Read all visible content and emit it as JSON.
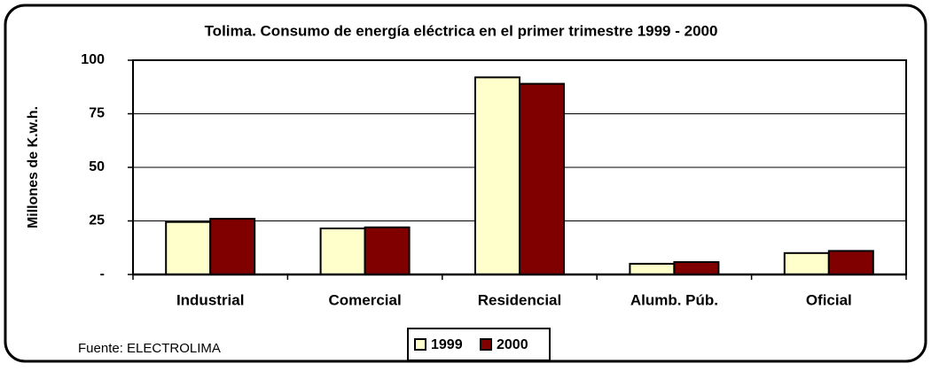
{
  "chart_data": {
    "type": "bar",
    "title": "Tolima. Consumo de energía eléctrica en el primer trimestre 1999 - 2000",
    "y_label": "Millones de K.w.h.",
    "source": "Fuente: ELECTROLIMA",
    "categories": [
      "Industrial",
      "Comercial",
      "Residencial",
      "Alumb. Púb.",
      "Oficial"
    ],
    "series": [
      {
        "name": "1999",
        "color": "#ffffcc",
        "values": [
          24.5,
          21.5,
          92,
          5,
          10
        ]
      },
      {
        "name": "2000",
        "color": "#800000",
        "values": [
          26,
          22,
          89,
          5.8,
          11
        ]
      }
    ],
    "ylim": [
      0,
      100
    ],
    "yticks": [
      {
        "value": 0,
        "label": "-"
      },
      25,
      50,
      75,
      100
    ],
    "grid": true,
    "legend": "bottom"
  }
}
